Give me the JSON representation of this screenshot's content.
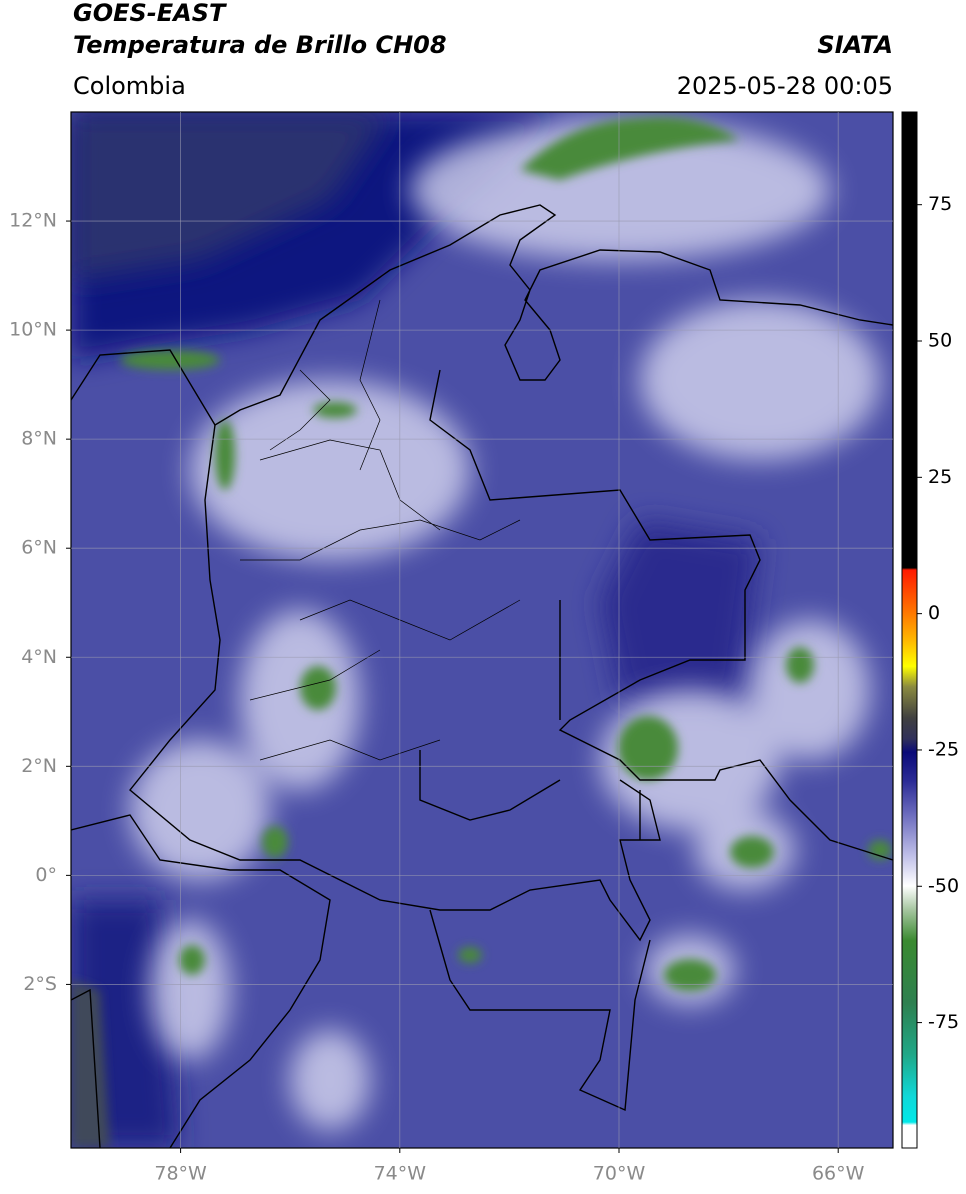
{
  "header": {
    "title": "GOES-EAST",
    "subtitle": "Temperatura de Brillo CH08",
    "source": "SIATA",
    "region": "Colombia",
    "datetime": "2025-05-28 00:05"
  },
  "map": {
    "xlim": [
      -80,
      -65
    ],
    "ylim": [
      -5,
      14
    ],
    "grid": true,
    "xticks": [
      {
        "value": -78,
        "label": "78°W"
      },
      {
        "value": -74,
        "label": "74°W"
      },
      {
        "value": -70,
        "label": "70°W"
      },
      {
        "value": -66,
        "label": "66°W"
      }
    ],
    "yticks": [
      {
        "value": 12,
        "label": "12°N"
      },
      {
        "value": 10,
        "label": "10°N"
      },
      {
        "value": 8,
        "label": "8°N"
      },
      {
        "value": 6,
        "label": "6°N"
      },
      {
        "value": 4,
        "label": "4°N"
      },
      {
        "value": 2,
        "label": "2°N"
      },
      {
        "value": 0,
        "label": "0°"
      },
      {
        "value": -2,
        "label": "2°S"
      }
    ]
  },
  "colorbar": {
    "lim": [
      -98,
      92
    ],
    "ticks": [
      75,
      50,
      25,
      0,
      -25,
      -50,
      -75
    ]
  }
}
